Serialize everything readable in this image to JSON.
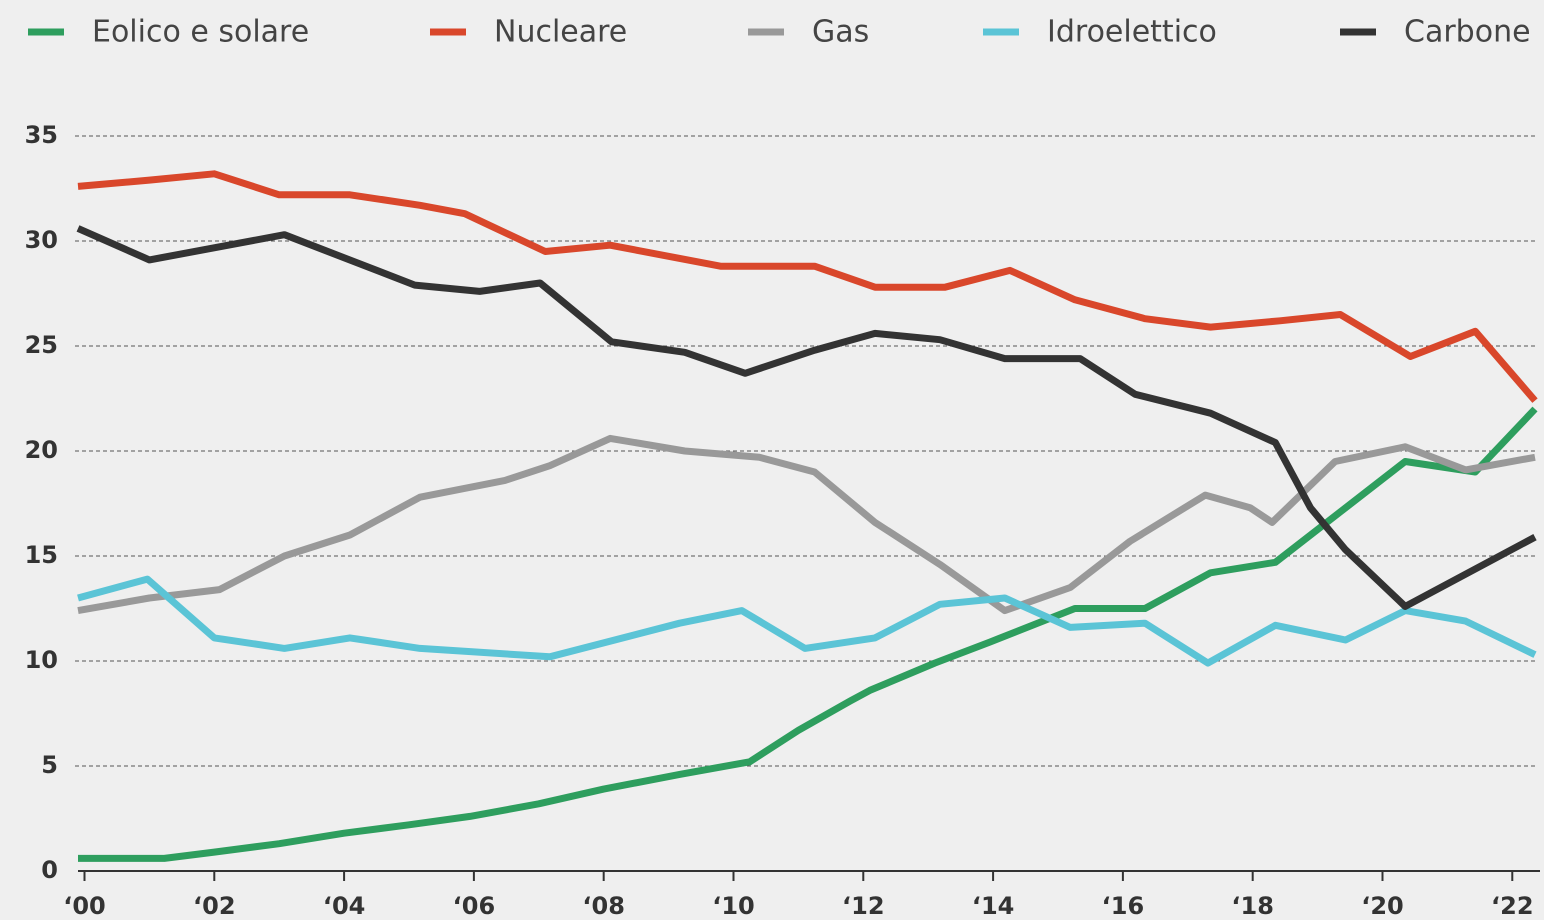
{
  "chart_data": {
    "type": "line",
    "xlim": [
      1999.9,
      2022.35
    ],
    "xticks": [
      {
        "value": 2000,
        "label": "‘00"
      },
      {
        "value": 2002,
        "label": "‘02"
      },
      {
        "value": 2004,
        "label": "‘04"
      },
      {
        "value": 2006,
        "label": "‘06"
      },
      {
        "value": 2008,
        "label": "‘08"
      },
      {
        "value": 2010,
        "label": "‘10"
      },
      {
        "value": 2012,
        "label": "‘12"
      },
      {
        "value": 2014,
        "label": "‘14"
      },
      {
        "value": 2016,
        "label": "‘16"
      },
      {
        "value": 2018,
        "label": "‘18"
      },
      {
        "value": 2020,
        "label": "‘20"
      },
      {
        "value": 2022,
        "label": "‘22"
      }
    ],
    "ylim": [
      0,
      35
    ],
    "yticks": [
      0,
      5,
      10,
      15,
      20,
      25,
      30,
      35
    ],
    "grid": true,
    "legend": "top",
    "series": [
      {
        "name": "Eolico e solare",
        "color": "#2e9e5e",
        "x": [
          1999.9,
          2001.23,
          2002.0,
          2003.0,
          2004.0,
          2005.0,
          2005.94,
          2007.0,
          2008.0,
          2009.17,
          2010.25,
          2011.0,
          2011.8,
          2012.1,
          2013.1,
          2013.95,
          2015.26,
          2016.34,
          2017.35,
          2018.35,
          2019.35,
          2020.35,
          2021.43,
          2022.35
        ],
        "values": [
          0.6,
          0.6,
          0.9,
          1.3,
          1.8,
          2.2,
          2.6,
          3.2,
          3.9,
          4.6,
          5.2,
          6.7,
          8.1,
          8.6,
          9.9,
          10.9,
          12.5,
          12.5,
          14.2,
          14.7,
          17.1,
          19.5,
          19.0,
          22.0
        ]
      },
      {
        "name": "Nucleare",
        "color": "#d9472b",
        "x": [
          1999.9,
          2001.0,
          2002.0,
          2003.0,
          2004.09,
          2005.17,
          2005.86,
          2007.1,
          2008.1,
          2009.8,
          2011.25,
          2012.18,
          2013.26,
          2014.26,
          2015.26,
          2016.34,
          2017.35,
          2018.42,
          2019.35,
          2020.43,
          2021.43,
          2022.35
        ],
        "values": [
          32.6,
          32.9,
          33.2,
          32.2,
          32.2,
          31.7,
          31.3,
          29.5,
          29.8,
          28.8,
          28.8,
          27.8,
          27.8,
          28.6,
          27.2,
          26.3,
          25.9,
          26.2,
          26.5,
          24.5,
          25.7,
          22.4
        ]
      },
      {
        "name": "Gas",
        "color": "#999999",
        "x": [
          1999.9,
          2001.0,
          2002.08,
          2003.08,
          2004.09,
          2005.17,
          2006.48,
          2007.17,
          2008.1,
          2009.25,
          2010.4,
          2011.25,
          2012.18,
          2013.18,
          2014.18,
          2015.19,
          2016.11,
          2017.27,
          2017.96,
          2018.3,
          2019.27,
          2020.35,
          2021.28,
          2022.35
        ],
        "values": [
          12.4,
          13.0,
          13.4,
          15.0,
          16.0,
          17.8,
          18.6,
          19.3,
          20.6,
          20.0,
          19.7,
          19.0,
          16.6,
          14.6,
          12.4,
          13.5,
          15.7,
          17.9,
          17.3,
          16.6,
          19.5,
          20.2,
          19.1,
          19.7
        ]
      },
      {
        "name": "Idroelettico",
        "color": "#5bc4d6",
        "x": [
          1999.9,
          2000.97,
          2002.0,
          2003.08,
          2004.09,
          2005.17,
          2007.17,
          2009.17,
          2010.13,
          2011.1,
          2012.18,
          2013.18,
          2014.18,
          2015.19,
          2016.34,
          2017.31,
          2018.35,
          2019.43,
          2020.35,
          2021.28,
          2022.35
        ],
        "values": [
          13.0,
          13.9,
          11.1,
          10.6,
          11.1,
          10.6,
          10.2,
          11.8,
          12.4,
          10.6,
          11.1,
          12.7,
          13.0,
          11.6,
          11.8,
          9.9,
          11.7,
          11.0,
          12.4,
          11.9,
          10.3
        ]
      },
      {
        "name": "Carbone",
        "color": "#333333",
        "x": [
          1999.9,
          2001.0,
          2003.08,
          2005.09,
          2006.09,
          2007.02,
          2008.12,
          2009.25,
          2010.18,
          2011.25,
          2012.18,
          2013.18,
          2014.18,
          2015.34,
          2016.19,
          2017.35,
          2018.35,
          2018.89,
          2019.43,
          2020.35,
          2022.35
        ],
        "values": [
          30.6,
          29.1,
          30.3,
          27.9,
          27.6,
          28.0,
          25.2,
          24.7,
          23.7,
          24.8,
          25.6,
          25.3,
          24.4,
          24.4,
          22.7,
          21.8,
          20.4,
          17.3,
          15.3,
          12.6,
          15.9
        ]
      }
    ]
  }
}
